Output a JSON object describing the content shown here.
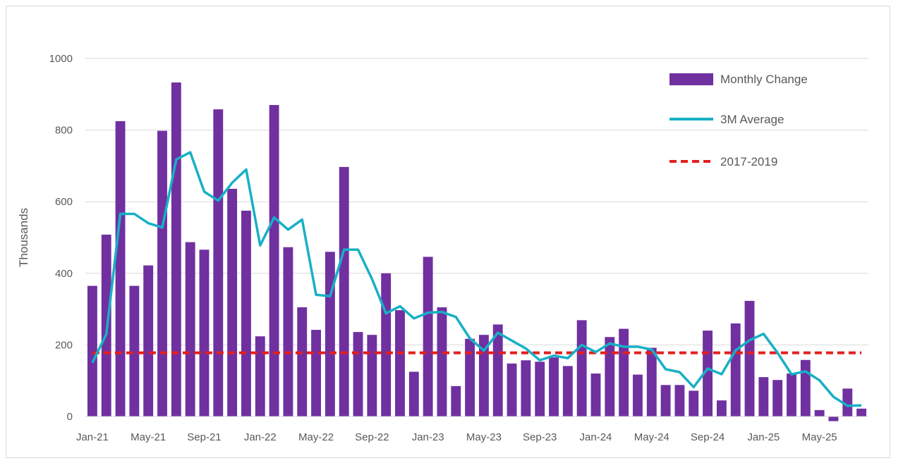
{
  "chart_data": {
    "type": "bar",
    "title": "",
    "xlabel": "",
    "ylabel": "Thousands",
    "ylim": [
      0,
      1000
    ],
    "yticks": [
      0,
      200,
      400,
      600,
      800,
      1000
    ],
    "grid": true,
    "legend_position": "top-right",
    "x_tick_labels": [
      "Jan-21",
      "May-21",
      "Sep-21",
      "Jan-22",
      "May-22",
      "Sep-22",
      "Jan-23",
      "May-23",
      "Sep-23",
      "Jan-24",
      "May-24",
      "Sep-24",
      "Jan-25",
      "May-25"
    ],
    "categories": [
      "Jan-21",
      "Feb-21",
      "Mar-21",
      "Apr-21",
      "May-21",
      "Jun-21",
      "Jul-21",
      "Aug-21",
      "Sep-21",
      "Oct-21",
      "Nov-21",
      "Dec-21",
      "Jan-22",
      "Feb-22",
      "Mar-22",
      "Apr-22",
      "May-22",
      "Jun-22",
      "Jul-22",
      "Aug-22",
      "Sep-22",
      "Oct-22",
      "Nov-22",
      "Dec-22",
      "Jan-23",
      "Feb-23",
      "Mar-23",
      "Apr-23",
      "May-23",
      "Jun-23",
      "Jul-23",
      "Aug-23",
      "Sep-23",
      "Oct-23",
      "Nov-23",
      "Dec-23",
      "Jan-24",
      "Feb-24",
      "Mar-24",
      "Apr-24",
      "May-24",
      "Jun-24",
      "Jul-24",
      "Aug-24",
      "Sep-24",
      "Oct-24",
      "Nov-24",
      "Dec-24",
      "Jan-25",
      "Feb-25",
      "Mar-25",
      "Apr-25",
      "May-25",
      "Jun-25",
      "Jul-25",
      "Aug-25"
    ],
    "series": [
      {
        "name": "Monthly Change",
        "type": "bar",
        "color": "#7030A0",
        "values": [
          365,
          508,
          825,
          365,
          422,
          798,
          933,
          487,
          466,
          858,
          636,
          575,
          224,
          870,
          473,
          305,
          242,
          460,
          697,
          236,
          228,
          400,
          297,
          125,
          446,
          305,
          85,
          217,
          228,
          257,
          148,
          157,
          153,
          165,
          141,
          269,
          120,
          222,
          245,
          117,
          192,
          88,
          88,
          72,
          240,
          45,
          260,
          323,
          110,
          102,
          120,
          158,
          18,
          -13,
          78,
          22
        ]
      },
      {
        "name": "3M Average",
        "type": "line",
        "color": "#17B0C6",
        "values": [
          150,
          230,
          566,
          566,
          540,
          528,
          718,
          738,
          628,
          603,
          653,
          690,
          478,
          556,
          522,
          550,
          340,
          336,
          466,
          466,
          384,
          288,
          308,
          274,
          290,
          292,
          278,
          218,
          184,
          234,
          212,
          190,
          157,
          170,
          163,
          200,
          180,
          204,
          195,
          195,
          187,
          132,
          124,
          82,
          134,
          118,
          185,
          213,
          231,
          178,
          118,
          126,
          101,
          55,
          30,
          31
        ]
      },
      {
        "name": "2017-2019",
        "type": "line",
        "style": "dashed",
        "color": "#E41E1E",
        "values": [
          178,
          178,
          178,
          178,
          178,
          178,
          178,
          178,
          178,
          178,
          178,
          178,
          178,
          178,
          178,
          178,
          178,
          178,
          178,
          178,
          178,
          178,
          178,
          178,
          178,
          178,
          178,
          178,
          178,
          178,
          178,
          178,
          178,
          178,
          178,
          178,
          178,
          178,
          178,
          178,
          178,
          178,
          178,
          178,
          178,
          178,
          178,
          178,
          178,
          178,
          178,
          178,
          178,
          178,
          178,
          178
        ]
      }
    ]
  }
}
